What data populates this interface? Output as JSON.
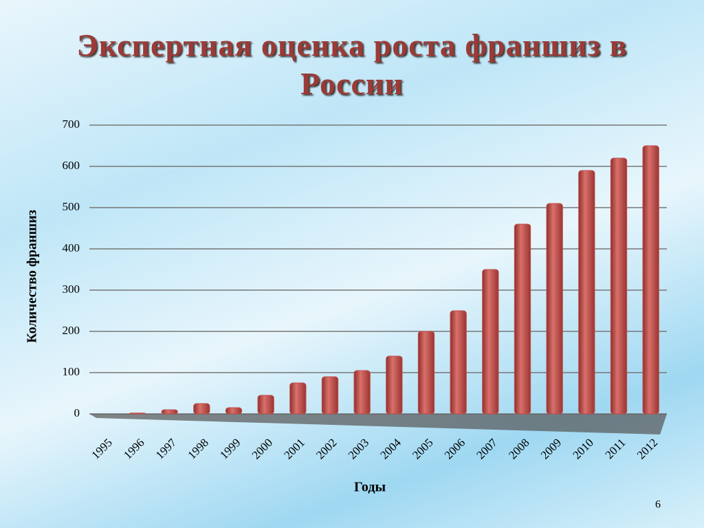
{
  "chart_data": {
    "type": "bar",
    "title": "Экспертная оценка роста франшиз в России",
    "x_label": "Годы",
    "y_label": "Количество франшиз",
    "categories": [
      "1995",
      "1996",
      "1997",
      "1998",
      "1999",
      "2000",
      "2001",
      "2002",
      "2003",
      "2004",
      "2005",
      "2006",
      "2007",
      "2008",
      "2009",
      "2010",
      "2011",
      "2012"
    ],
    "values": [
      0,
      2,
      10,
      25,
      15,
      45,
      75,
      90,
      105,
      140,
      200,
      250,
      350,
      460,
      510,
      590,
      620,
      650
    ],
    "color": "#c0504d",
    "ylim": [
      0,
      700
    ],
    "yticks": [
      0,
      100,
      200,
      300,
      400,
      500,
      600,
      700
    ],
    "grid": true
  },
  "slide_number": "6"
}
